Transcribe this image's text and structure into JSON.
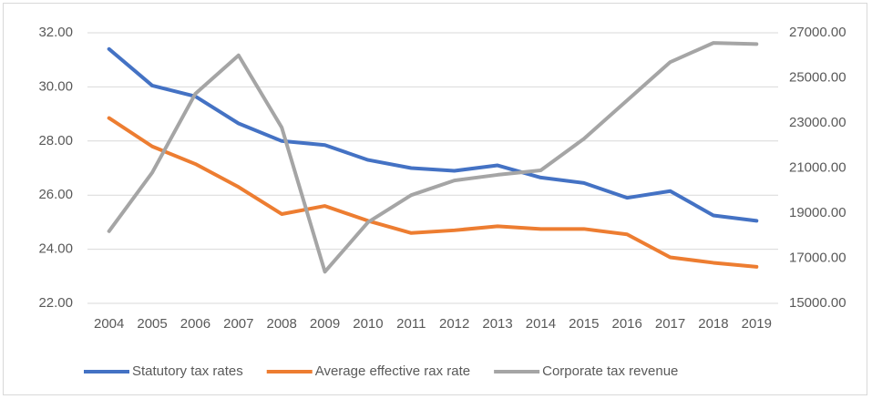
{
  "chart_data": {
    "type": "line",
    "categories": [
      "2004",
      "2005",
      "2006",
      "2007",
      "2008",
      "2009",
      "2010",
      "2011",
      "2012",
      "2013",
      "2014",
      "2015",
      "2016",
      "2017",
      "2018",
      "2019"
    ],
    "series": [
      {
        "name": "Statutory tax rates",
        "color": "#4472c4",
        "values": [
          31.4,
          30.05,
          29.65,
          28.65,
          28.0,
          27.85,
          27.3,
          27.0,
          26.9,
          27.1,
          26.65,
          26.45,
          25.9,
          26.15,
          25.25,
          25.05
        ]
      },
      {
        "name": "Average effective rax rate",
        "color": "#ed7d31",
        "values": [
          28.85,
          27.8,
          27.15,
          26.3,
          25.3,
          25.6,
          25.05,
          24.6,
          24.7,
          24.85,
          24.75,
          24.75,
          24.55,
          23.7,
          23.5,
          23.35
        ]
      },
      {
        "name": "Corporate tax revenue",
        "color": "#a5a5a5",
        "axis": "y2",
        "values": [
          18200,
          20800,
          24300,
          26000,
          22800,
          16400,
          18600,
          19800,
          20450,
          20700,
          20900,
          22300,
          24000,
          25700,
          26550,
          26500
        ]
      }
    ],
    "ylim": [
      22,
      32
    ],
    "yticks": [
      {
        "value": 22,
        "label": "22.00"
      },
      {
        "value": 24,
        "label": "24.00"
      },
      {
        "value": 26,
        "label": "26.00"
      },
      {
        "value": 28,
        "label": "28.00"
      },
      {
        "value": 30,
        "label": "30.00"
      },
      {
        "value": 32,
        "label": "32.00"
      }
    ],
    "y2lim": [
      15000,
      27000
    ],
    "y2ticks": [
      {
        "value": 15000,
        "label": "15000.00"
      },
      {
        "value": 17000,
        "label": "17000.00"
      },
      {
        "value": 19000,
        "label": "19000.00"
      },
      {
        "value": 21000,
        "label": "21000.00"
      },
      {
        "value": 23000,
        "label": "23000.00"
      },
      {
        "value": 25000,
        "label": "25000.00"
      },
      {
        "value": 27000,
        "label": "27000.00"
      }
    ],
    "grid": true,
    "legend": "bottom"
  }
}
